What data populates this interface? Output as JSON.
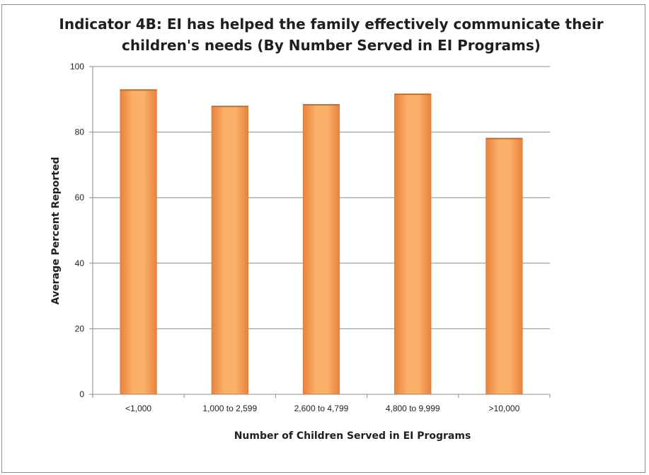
{
  "chart_data": {
    "type": "bar",
    "title_lines": [
      "Indicator 4B: EI has helped the family effectively communicate their",
      "children's needs (By Number Served in EI Programs)"
    ],
    "xlabel": "Number of Children Served in EI Programs",
    "ylabel": "Average Percent Reported",
    "categories": [
      "<1,000",
      "1,000 to 2,599",
      "2,600 to 4,799",
      "4,800 to 9,999",
      ">10,000"
    ],
    "values": [
      93,
      88,
      88.5,
      91.7,
      78.2
    ],
    "ylim": [
      0,
      100
    ],
    "yticks": [
      0,
      20,
      40,
      60,
      80,
      100
    ],
    "grid": true,
    "legend": "none",
    "bar_color": "#f79646"
  }
}
